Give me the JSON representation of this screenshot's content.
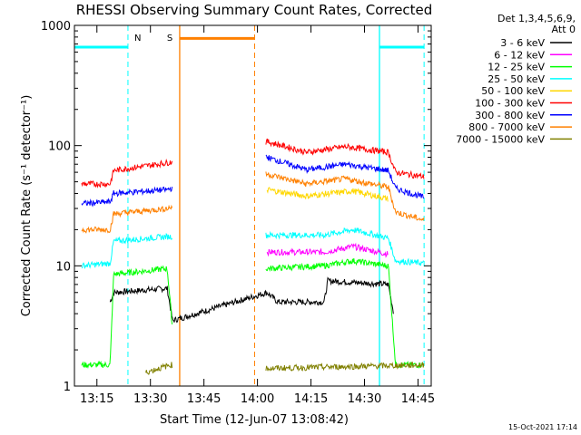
{
  "chart_data": {
    "type": "line",
    "title": "RHESSI Observing Summary Count Rates, Corrected",
    "xlabel": "Start Time (12-Jun-07 13:08:42)",
    "ylabel": "Corrected Count Rate (s⁻¹ detector⁻¹)",
    "yscale": "log",
    "ylim": [
      1,
      1000
    ],
    "xlim_minutes": [
      0,
      100
    ],
    "x_ticks": [
      {
        "t": 6.3,
        "label": "13:15"
      },
      {
        "t": 21.3,
        "label": "13:30"
      },
      {
        "t": 36.3,
        "label": "13:45"
      },
      {
        "t": 51.3,
        "label": "14:00"
      },
      {
        "t": 66.3,
        "label": "14:15"
      },
      {
        "t": 81.3,
        "label": "14:30"
      },
      {
        "t": 96.3,
        "label": "14:45"
      }
    ],
    "y_ticks": [
      {
        "v": 1,
        "label": "1"
      },
      {
        "v": 10,
        "label": "10"
      },
      {
        "v": 100,
        "label": "100"
      },
      {
        "v": 1000,
        "label": "1000"
      }
    ],
    "legend_header": [
      "Det 1,3,4,5,6,9,",
      "Att 0"
    ],
    "legend_position": "top-right",
    "series": [
      {
        "name": "3 - 6 keV",
        "color": "#000000",
        "values": [
          {
            "t": 10,
            "v": 5
          },
          {
            "t": 11,
            "v": 6
          },
          {
            "t": 26,
            "v": 6.5
          },
          {
            "t": 27.5,
            "v": 3.5
          },
          {
            "t": 54,
            "v": 6
          },
          {
            "t": 57,
            "v": 5
          },
          {
            "t": 70,
            "v": 5
          },
          {
            "t": 71,
            "v": 7.5
          },
          {
            "t": 88,
            "v": 7
          },
          {
            "t": 89.5,
            "v": 4
          }
        ]
      },
      {
        "name": "6 - 12 keV",
        "color": "#ff00ff",
        "values": [
          {
            "t": 54,
            "v": 13
          },
          {
            "t": 70,
            "v": 13
          },
          {
            "t": 78,
            "v": 14.5
          },
          {
            "t": 88,
            "v": 12.5
          }
        ]
      },
      {
        "name": "12 - 25 keV",
        "color": "#00ff00",
        "values": [
          {
            "t": 2,
            "v": 1.5
          },
          {
            "t": 10,
            "v": 1.5
          },
          {
            "t": 11,
            "v": 8.5
          },
          {
            "t": 26,
            "v": 9.5
          },
          {
            "t": 27.5,
            "v": 3
          },
          {
            "t": 54,
            "v": 9.5
          },
          {
            "t": 70,
            "v": 10
          },
          {
            "t": 78,
            "v": 11
          },
          {
            "t": 88,
            "v": 10
          },
          {
            "t": 90,
            "v": 1.5
          },
          {
            "t": 98,
            "v": 1.5
          }
        ]
      },
      {
        "name": "25 - 50 keV",
        "color": "#00ffff",
        "values": [
          {
            "t": 2,
            "v": 10
          },
          {
            "t": 10,
            "v": 10.5
          },
          {
            "t": 11,
            "v": 16
          },
          {
            "t": 26,
            "v": 17.5
          },
          {
            "t": 54,
            "v": 18
          },
          {
            "t": 70,
            "v": 18
          },
          {
            "t": 78,
            "v": 20
          },
          {
            "t": 88,
            "v": 17
          },
          {
            "t": 90,
            "v": 11
          },
          {
            "t": 98,
            "v": 10.5
          }
        ]
      },
      {
        "name": "50 - 100 keV",
        "color": "#ffd700",
        "values": [
          {
            "t": 54,
            "v": 43
          },
          {
            "t": 65,
            "v": 38
          },
          {
            "t": 78,
            "v": 42
          },
          {
            "t": 88,
            "v": 36
          }
        ]
      },
      {
        "name": "100 - 300 keV",
        "color": "#ff0000",
        "values": [
          {
            "t": 2,
            "v": 48
          },
          {
            "t": 10,
            "v": 48
          },
          {
            "t": 11,
            "v": 62
          },
          {
            "t": 26,
            "v": 72
          },
          {
            "t": 54,
            "v": 108
          },
          {
            "t": 65,
            "v": 88
          },
          {
            "t": 76,
            "v": 98
          },
          {
            "t": 88,
            "v": 88
          },
          {
            "t": 90,
            "v": 60
          },
          {
            "t": 98,
            "v": 55
          }
        ]
      },
      {
        "name": "300 - 800 keV",
        "color": "#0000ff",
        "values": [
          {
            "t": 2,
            "v": 33
          },
          {
            "t": 10,
            "v": 34
          },
          {
            "t": 11,
            "v": 40
          },
          {
            "t": 26,
            "v": 43
          },
          {
            "t": 54,
            "v": 80
          },
          {
            "t": 65,
            "v": 63
          },
          {
            "t": 76,
            "v": 70
          },
          {
            "t": 88,
            "v": 62
          },
          {
            "t": 90,
            "v": 44
          },
          {
            "t": 98,
            "v": 37
          }
        ]
      },
      {
        "name": "800 - 7000 keV",
        "color": "#ff8000",
        "values": [
          {
            "t": 2,
            "v": 20
          },
          {
            "t": 10,
            "v": 20
          },
          {
            "t": 11,
            "v": 27
          },
          {
            "t": 26,
            "v": 30
          },
          {
            "t": 54,
            "v": 58
          },
          {
            "t": 65,
            "v": 48
          },
          {
            "t": 76,
            "v": 53
          },
          {
            "t": 88,
            "v": 45
          },
          {
            "t": 90,
            "v": 28
          },
          {
            "t": 98,
            "v": 24
          }
        ]
      },
      {
        "name": "7000 - 15000 keV",
        "color": "#808000",
        "values": [
          {
            "t": 20,
            "v": 1.3
          },
          {
            "t": 27,
            "v": 1.5
          },
          {
            "t": 53,
            "v": 1.4
          },
          {
            "t": 98,
            "v": 1.5
          }
        ]
      }
    ],
    "markers": [
      {
        "label": "N",
        "color": "#00ffff",
        "solid_t": [
          85.5
        ],
        "dashed_t": [
          15,
          98
        ],
        "bars": [
          {
            "t0": 0,
            "t1": 15,
            "v": 660
          },
          {
            "t0": 85.5,
            "t1": 98,
            "v": 660
          }
        ]
      },
      {
        "label": "S",
        "color": "#ff8000",
        "solid_t": [
          29.5
        ],
        "dashed_t": [
          50.5
        ],
        "bars": [
          {
            "t0": 29.5,
            "t1": 50.5,
            "v": 780
          }
        ]
      }
    ],
    "grid": false
  },
  "footer_stamp": "15-Oct-2021 17:14"
}
